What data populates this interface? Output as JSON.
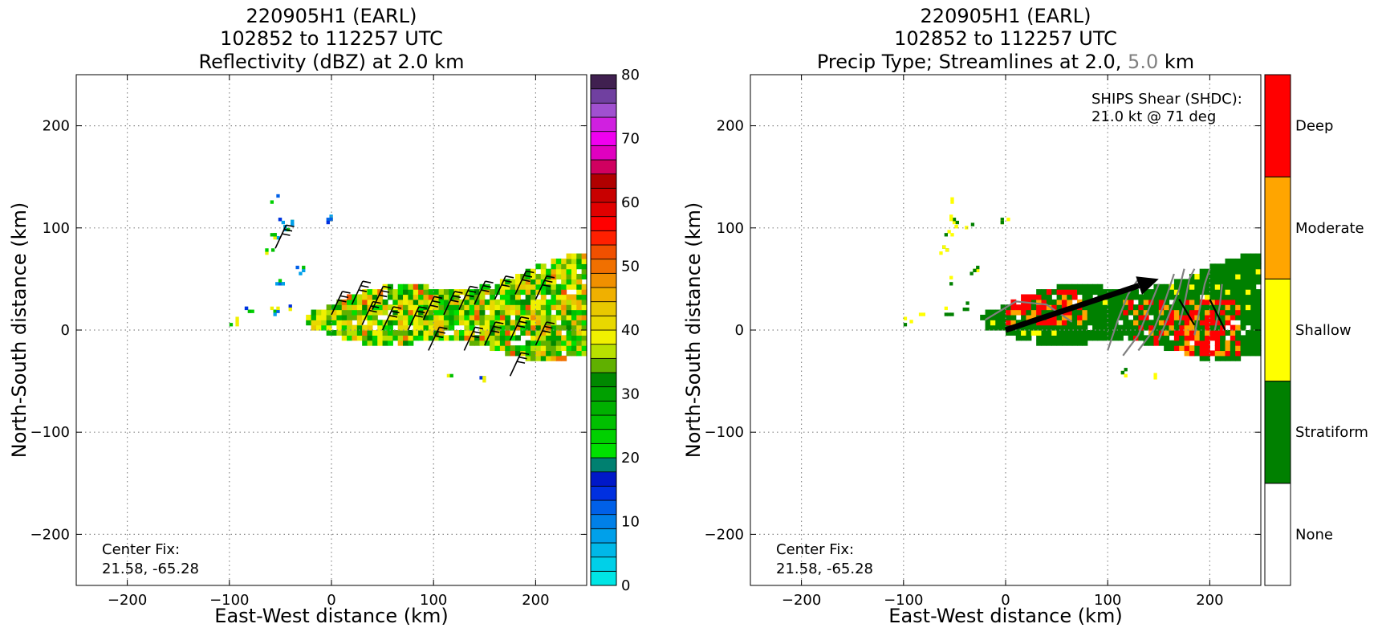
{
  "chart_data": [
    {
      "type": "heatmap",
      "title_lines": [
        "220905H1 (EARL)",
        "102852 to 112257 UTC",
        "Reflectivity (dBZ) at 2.0 km"
      ],
      "xlabel": "East-West distance (km)",
      "ylabel": "North-South distance (km)",
      "xlim": [
        -250,
        250
      ],
      "ylim": [
        -250,
        250
      ],
      "xticks": [
        -200,
        -100,
        0,
        100,
        200
      ],
      "yticks": [
        -200,
        -100,
        0,
        100,
        200
      ],
      "tick_labels_x": [
        "−200",
        "−100",
        "0",
        "100",
        "200"
      ],
      "tick_labels_y": [
        "−200",
        "−100",
        "0",
        "100",
        "200"
      ],
      "grid": true,
      "annotation": [
        "Center Fix:",
        "21.58, -65.28"
      ],
      "colorbar": {
        "min": 0,
        "max": 80,
        "step": 2.5,
        "tick_values": [
          0,
          10,
          20,
          30,
          40,
          50,
          60,
          70,
          80
        ],
        "tick_labels": [
          "0",
          "10",
          "20",
          "30",
          "40",
          "50",
          "60",
          "70",
          "80"
        ],
        "colors": [
          "#00e5e5",
          "#00d0e8",
          "#00b8e8",
          "#00a0ea",
          "#0080e8",
          "#0060e8",
          "#0030e0",
          "#0018c8",
          "#008070",
          "#00e000",
          "#00d000",
          "#00c000",
          "#00b000",
          "#00a000",
          "#008800",
          "#60b000",
          "#b8e000",
          "#f0f000",
          "#e8d800",
          "#e8c800",
          "#f0b000",
          "#f09000",
          "#f07000",
          "#f05000",
          "#ff2000",
          "#ff0000",
          "#e00000",
          "#c80000",
          "#b00000",
          "#d00060",
          "#e000c0",
          "#f000f0",
          "#d020e0",
          "#a050d0",
          "#7040a0",
          "#402050"
        ]
      },
      "echo_regions": [
        {
          "x": [
            -10,
            245
          ],
          "y": [
            -10,
            65
          ],
          "dbz_range": [
            20,
            45
          ]
        },
        {
          "x": [
            -70,
            -20
          ],
          "y": [
            20,
            135
          ],
          "dbz_range": [
            10,
            30
          ]
        }
      ],
      "wind_barbs": [
        {
          "x": -55,
          "y": 80
        },
        {
          "x": 0,
          "y": 15
        },
        {
          "x": 20,
          "y": 25
        },
        {
          "x": 40,
          "y": 20
        },
        {
          "x": 30,
          "y": 5
        },
        {
          "x": 50,
          "y": 0
        },
        {
          "x": 75,
          "y": 0
        },
        {
          "x": 90,
          "y": 10
        },
        {
          "x": 110,
          "y": 15
        },
        {
          "x": 125,
          "y": 20
        },
        {
          "x": 140,
          "y": 25
        },
        {
          "x": 160,
          "y": 30
        },
        {
          "x": 180,
          "y": 35
        },
        {
          "x": 200,
          "y": 30
        },
        {
          "x": 95,
          "y": -20
        },
        {
          "x": 130,
          "y": -20
        },
        {
          "x": 150,
          "y": -15
        },
        {
          "x": 175,
          "y": -10
        },
        {
          "x": 200,
          "y": -15
        },
        {
          "x": 175,
          "y": -45
        }
      ]
    },
    {
      "type": "heatmap",
      "title_lines": [
        "220905H1 (EARL)",
        "102852 to 112257 UTC",
        "Precip Type; Streamlines at 2.0, ",
        "5.0",
        " km"
      ],
      "xlabel": "East-West distance (km)",
      "ylabel": "North-South distance (km)",
      "xlim": [
        -250,
        250
      ],
      "ylim": [
        -250,
        250
      ],
      "xticks": [
        -200,
        -100,
        0,
        100,
        200
      ],
      "yticks": [
        -200,
        -100,
        0,
        100,
        200
      ],
      "tick_labels_x": [
        "−200",
        "−100",
        "0",
        "100",
        "200"
      ],
      "tick_labels_y": [
        "−200",
        "−100",
        "0",
        "100",
        "200"
      ],
      "grid": true,
      "annotation": [
        "Center Fix:",
        "21.58, -65.28"
      ],
      "shear_text": [
        "SHIPS Shear (SHDC):",
        "21.0 kt @ 71 deg"
      ],
      "shear_vector": {
        "from": [
          0,
          0
        ],
        "to": [
          150,
          50
        ]
      },
      "colorbar": {
        "categories": [
          "None",
          "Stratiform",
          "Shallow",
          "Moderate",
          "Deep"
        ],
        "colors": [
          "#ffffff",
          "#008000",
          "#ffff00",
          "#ffa500",
          "#ff0000"
        ]
      },
      "precip_regions": [
        {
          "x": [
            -30,
            245
          ],
          "y": [
            -45,
            65
          ],
          "dominant": "Stratiform"
        },
        {
          "x": [
            -10,
            80
          ],
          "y": [
            0,
            40
          ],
          "contains": [
            "Deep",
            "Moderate",
            "Shallow"
          ]
        },
        {
          "x": [
            110,
            230
          ],
          "y": [
            -30,
            30
          ],
          "contains": [
            "Deep",
            "Moderate"
          ]
        }
      ]
    }
  ]
}
